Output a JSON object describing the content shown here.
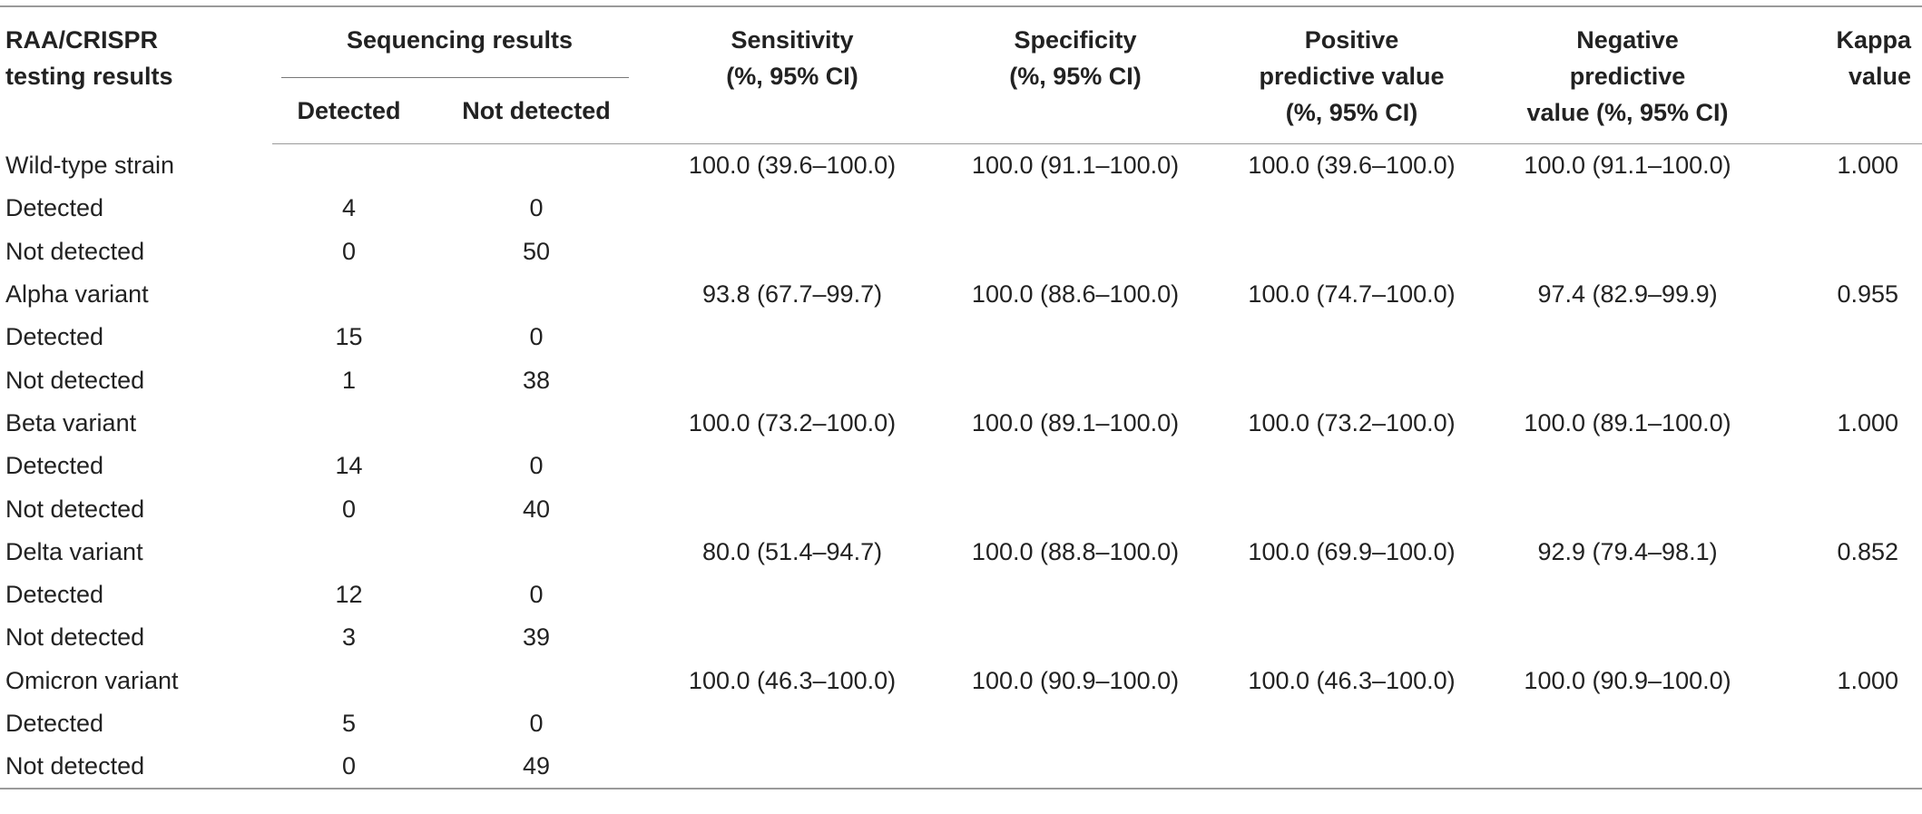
{
  "header": {
    "col_testing": "RAA/CRISPR\ntesting results",
    "col_sequencing": "Sequencing results",
    "col_detected": "Detected",
    "col_not_detected": "Not detected",
    "col_sensitivity": "Sensitivity\n(%, 95% CI)",
    "col_specificity": "Specificity\n(%, 95% CI)",
    "col_ppv": "Positive\npredictive value\n(%, 95% CI)",
    "col_npv": "Negative\npredictive\nvalue (%, 95% CI)",
    "col_kappa": "Kappa\nvalue"
  },
  "groups": [
    {
      "name": "Wild-type strain",
      "sensitivity": "100.0 (39.6–100.0)",
      "specificity": "100.0 (91.1–100.0)",
      "ppv": "100.0 (39.6–100.0)",
      "npv": "100.0 (91.1–100.0)",
      "kappa": "1.000",
      "detected_label": "Detected",
      "not_detected_label": "Not detected",
      "detected_detected": "4",
      "detected_not_detected": "0",
      "not_detected_detected": "0",
      "not_detected_not_detected": "50"
    },
    {
      "name": "Alpha variant",
      "sensitivity": "93.8 (67.7–99.7)",
      "specificity": "100.0 (88.6–100.0)",
      "ppv": "100.0 (74.7–100.0)",
      "npv": "97.4 (82.9–99.9)",
      "kappa": "0.955",
      "detected_label": "Detected",
      "not_detected_label": "Not detected",
      "detected_detected": "15",
      "detected_not_detected": "0",
      "not_detected_detected": "1",
      "not_detected_not_detected": "38"
    },
    {
      "name": "Beta variant",
      "sensitivity": "100.0 (73.2–100.0)",
      "specificity": "100.0 (89.1–100.0)",
      "ppv": "100.0 (73.2–100.0)",
      "npv": "100.0 (89.1–100.0)",
      "kappa": "1.000",
      "detected_label": "Detected",
      "not_detected_label": "Not detected",
      "detected_detected": "14",
      "detected_not_detected": "0",
      "not_detected_detected": "0",
      "not_detected_not_detected": "40"
    },
    {
      "name": "Delta variant",
      "sensitivity": "80.0 (51.4–94.7)",
      "specificity": "100.0 (88.8–100.0)",
      "ppv": "100.0 (69.9–100.0)",
      "npv": "92.9 (79.4–98.1)",
      "kappa": "0.852",
      "detected_label": "Detected",
      "not_detected_label": "Not detected",
      "detected_detected": "12",
      "detected_not_detected": "0",
      "not_detected_detected": "3",
      "not_detected_not_detected": "39"
    },
    {
      "name": "Omicron variant",
      "sensitivity": "100.0 (46.3–100.0)",
      "specificity": "100.0 (90.9–100.0)",
      "ppv": "100.0 (46.3–100.0)",
      "npv": "100.0 (90.9–100.0)",
      "kappa": "1.000",
      "detected_label": "Detected",
      "not_detected_label": "Not detected",
      "detected_detected": "5",
      "detected_not_detected": "0",
      "not_detected_detected": "0",
      "not_detected_not_detected": "49"
    }
  ]
}
